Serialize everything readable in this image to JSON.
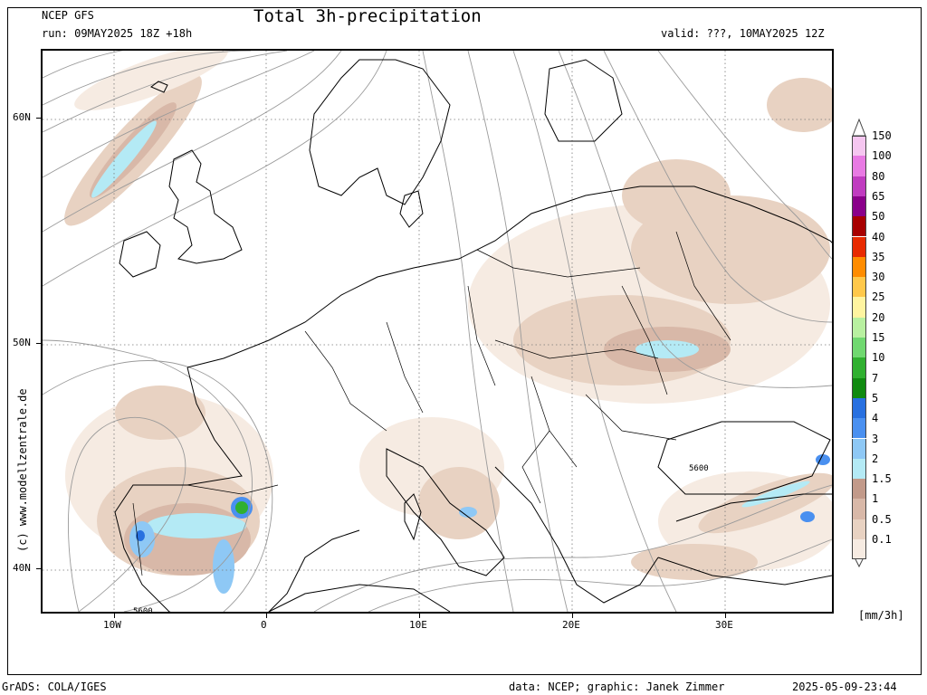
{
  "header": {
    "model": "NCEP GFS",
    "run": "run: 09MAY2025 18Z +18h",
    "title": "Total 3h-precipitation",
    "valid": "valid: ???, 10MAY2025 12Z"
  },
  "axes": {
    "lat_labels": [
      "60N",
      "50N",
      "40N"
    ],
    "lon_labels": [
      "10W",
      "0",
      "10E",
      "20E",
      "30E"
    ]
  },
  "contour_labels": [
    "5600",
    "5600"
  ],
  "legend": {
    "unit": "[mm/3h]",
    "levels": [
      {
        "label": "150",
        "color": "#f5c6f0"
      },
      {
        "label": "100",
        "color": "#e87ae3"
      },
      {
        "label": "80",
        "color": "#c03cc0"
      },
      {
        "label": "65",
        "color": "#8a008a"
      },
      {
        "label": "50",
        "color": "#a80000"
      },
      {
        "label": "40",
        "color": "#e82a00"
      },
      {
        "label": "35",
        "color": "#ff8c00"
      },
      {
        "label": "30",
        "color": "#ffc84a"
      },
      {
        "label": "25",
        "color": "#fff4a0"
      },
      {
        "label": "20",
        "color": "#b8f0a0"
      },
      {
        "label": "15",
        "color": "#70d870"
      },
      {
        "label": "10",
        "color": "#30b030"
      },
      {
        "label": "7",
        "color": "#108a10"
      },
      {
        "label": "5",
        "color": "#2870e0"
      },
      {
        "label": "4",
        "color": "#4a90f0"
      },
      {
        "label": "3",
        "color": "#8ec8f5"
      },
      {
        "label": "2",
        "color": "#b4eaf5"
      },
      {
        "label": "1.5",
        "color": "#c29a8a"
      },
      {
        "label": "1",
        "color": "#d8b8a8"
      },
      {
        "label": "0.5",
        "color": "#e8d2c2"
      },
      {
        "label": "0.1",
        "color": "#f6ebe2"
      }
    ]
  },
  "watermark": "(c) www.modellzentrale.de",
  "footer": {
    "left": "GrADS: COLA/IGES",
    "center": "data: NCEP; graphic: Janek Zimmer",
    "right": "2025-05-09-23:44"
  }
}
